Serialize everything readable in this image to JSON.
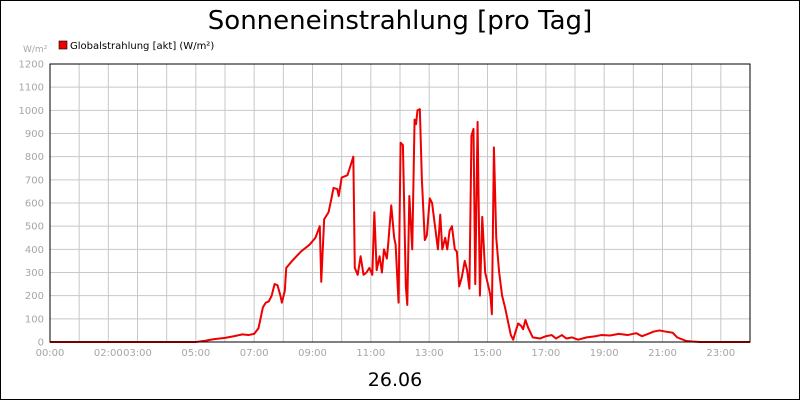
{
  "chart_data": {
    "type": "line",
    "title": "Sonneneinstrahlung [pro Tag]",
    "ylabel": "W/m²",
    "xlabel": "26.06",
    "ylim": [
      0,
      1200
    ],
    "xlim": [
      0,
      24
    ],
    "grid": true,
    "legend_position": "top-left",
    "y_ticks": [
      0,
      100,
      200,
      300,
      400,
      500,
      600,
      700,
      800,
      900,
      1000,
      1100,
      1200
    ],
    "x_ticks": [
      {
        "pos": 0,
        "label": "00:00"
      },
      {
        "pos": 2,
        "label": "02:00"
      },
      {
        "pos": 3,
        "label": "03:00"
      },
      {
        "pos": 5,
        "label": "05:00"
      },
      {
        "pos": 7,
        "label": "07:00"
      },
      {
        "pos": 9,
        "label": "09:00"
      },
      {
        "pos": 11,
        "label": "11:00"
      },
      {
        "pos": 13,
        "label": "13:00"
      },
      {
        "pos": 15,
        "label": "15:00"
      },
      {
        "pos": 17,
        "label": "17:00"
      },
      {
        "pos": 19,
        "label": "19:00"
      },
      {
        "pos": 21,
        "label": "21:00"
      },
      {
        "pos": 23,
        "label": "23:00"
      }
    ],
    "x_grid": [
      0,
      1,
      2,
      3,
      4,
      5,
      6,
      7,
      8,
      9,
      10,
      11,
      12,
      13,
      14,
      15,
      16,
      17,
      18,
      19,
      20,
      21,
      22,
      23,
      24
    ],
    "colors": {
      "series": "#ee0000",
      "grid": "#c8c8c8",
      "axis": "#000000"
    },
    "series": [
      {
        "name": "Globalstrahlung [akt] (W/m²)",
        "color": "#ee0000",
        "points": [
          [
            0.0,
            0
          ],
          [
            5.0,
            0
          ],
          [
            5.3,
            5
          ],
          [
            5.6,
            12
          ],
          [
            6.0,
            18
          ],
          [
            6.3,
            25
          ],
          [
            6.6,
            33
          ],
          [
            6.8,
            30
          ],
          [
            7.0,
            35
          ],
          [
            7.15,
            60
          ],
          [
            7.3,
            150
          ],
          [
            7.4,
            170
          ],
          [
            7.5,
            175
          ],
          [
            7.6,
            200
          ],
          [
            7.7,
            250
          ],
          [
            7.8,
            245
          ],
          [
            7.9,
            200
          ],
          [
            7.95,
            170
          ],
          [
            8.05,
            220
          ],
          [
            8.1,
            320
          ],
          [
            8.3,
            350
          ],
          [
            8.6,
            390
          ],
          [
            8.9,
            420
          ],
          [
            9.1,
            450
          ],
          [
            9.25,
            500
          ],
          [
            9.3,
            260
          ],
          [
            9.4,
            530
          ],
          [
            9.55,
            560
          ],
          [
            9.65,
            620
          ],
          [
            9.72,
            665
          ],
          [
            9.85,
            660
          ],
          [
            9.9,
            630
          ],
          [
            10.0,
            710
          ],
          [
            10.2,
            720
          ],
          [
            10.3,
            760
          ],
          [
            10.4,
            800
          ],
          [
            10.45,
            320
          ],
          [
            10.55,
            290
          ],
          [
            10.65,
            370
          ],
          [
            10.75,
            290
          ],
          [
            10.85,
            300
          ],
          [
            10.95,
            320
          ],
          [
            11.05,
            290
          ],
          [
            11.12,
            560
          ],
          [
            11.2,
            310
          ],
          [
            11.3,
            370
          ],
          [
            11.38,
            300
          ],
          [
            11.45,
            400
          ],
          [
            11.55,
            360
          ],
          [
            11.6,
            430
          ],
          [
            11.7,
            590
          ],
          [
            11.8,
            450
          ],
          [
            11.85,
            420
          ],
          [
            11.95,
            170
          ],
          [
            12.02,
            860
          ],
          [
            12.1,
            850
          ],
          [
            12.2,
            240
          ],
          [
            12.25,
            160
          ],
          [
            12.32,
            630
          ],
          [
            12.42,
            400
          ],
          [
            12.5,
            960
          ],
          [
            12.55,
            940
          ],
          [
            12.6,
            1000
          ],
          [
            12.68,
            1005
          ],
          [
            12.75,
            700
          ],
          [
            12.85,
            440
          ],
          [
            12.92,
            460
          ],
          [
            13.02,
            620
          ],
          [
            13.1,
            600
          ],
          [
            13.2,
            500
          ],
          [
            13.3,
            400
          ],
          [
            13.38,
            550
          ],
          [
            13.45,
            400
          ],
          [
            13.55,
            450
          ],
          [
            13.62,
            400
          ],
          [
            13.7,
            480
          ],
          [
            13.78,
            500
          ],
          [
            13.88,
            400
          ],
          [
            13.95,
            390
          ],
          [
            14.03,
            240
          ],
          [
            14.12,
            280
          ],
          [
            14.22,
            350
          ],
          [
            14.3,
            310
          ],
          [
            14.38,
            230
          ],
          [
            14.45,
            890
          ],
          [
            14.52,
            920
          ],
          [
            14.58,
            250
          ],
          [
            14.66,
            950
          ],
          [
            14.74,
            200
          ],
          [
            14.82,
            540
          ],
          [
            14.92,
            300
          ],
          [
            15.05,
            230
          ],
          [
            15.1,
            200
          ],
          [
            15.15,
            120
          ],
          [
            15.22,
            840
          ],
          [
            15.3,
            450
          ],
          [
            15.4,
            300
          ],
          [
            15.5,
            200
          ],
          [
            15.6,
            150
          ],
          [
            15.7,
            90
          ],
          [
            15.8,
            30
          ],
          [
            15.88,
            10
          ],
          [
            15.95,
            40
          ],
          [
            16.05,
            80
          ],
          [
            16.15,
            70
          ],
          [
            16.22,
            55
          ],
          [
            16.3,
            95
          ],
          [
            16.4,
            60
          ],
          [
            16.55,
            20
          ],
          [
            16.8,
            15
          ],
          [
            17.0,
            25
          ],
          [
            17.2,
            30
          ],
          [
            17.35,
            15
          ],
          [
            17.55,
            30
          ],
          [
            17.7,
            15
          ],
          [
            17.9,
            20
          ],
          [
            18.1,
            10
          ],
          [
            18.4,
            20
          ],
          [
            18.7,
            25
          ],
          [
            18.9,
            30
          ],
          [
            19.2,
            28
          ],
          [
            19.5,
            35
          ],
          [
            19.8,
            30
          ],
          [
            20.1,
            38
          ],
          [
            20.3,
            25
          ],
          [
            20.5,
            35
          ],
          [
            20.7,
            45
          ],
          [
            20.9,
            50
          ],
          [
            21.1,
            45
          ],
          [
            21.35,
            40
          ],
          [
            21.5,
            20
          ],
          [
            21.8,
            5
          ],
          [
            22.0,
            2
          ],
          [
            22.3,
            0
          ],
          [
            24.0,
            0
          ]
        ]
      }
    ]
  }
}
